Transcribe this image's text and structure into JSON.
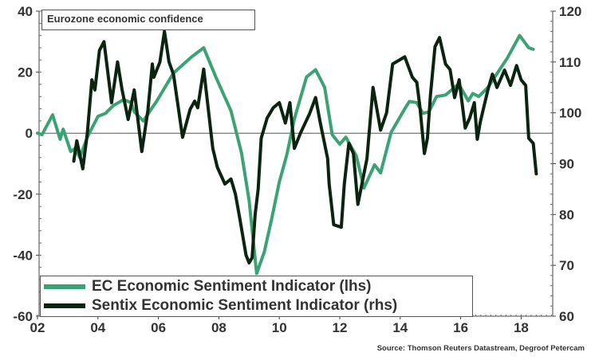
{
  "chart_data": {
    "type": "line",
    "title": "Eurozone economic confidence",
    "source": "Source: Thomson Reuters Datastream, Degroof Petercam",
    "x_tick_labels": [
      "02",
      "04",
      "06",
      "08",
      "10",
      "12",
      "14",
      "16",
      "18"
    ],
    "x_ticks": [
      2002,
      2004,
      2006,
      2008,
      2010,
      2012,
      2014,
      2016,
      2018
    ],
    "xlim": [
      2002,
      2019
    ],
    "y_left": {
      "lim": [
        -60,
        40
      ],
      "ticks": [
        -60,
        -40,
        -20,
        0,
        20,
        40
      ],
      "tick_labels": [
        "-60",
        "-40",
        "-20",
        "0",
        "20",
        "40"
      ]
    },
    "y_right": {
      "lim": [
        60,
        120
      ],
      "ticks": [
        60,
        70,
        80,
        90,
        100,
        110,
        120
      ],
      "tick_labels": [
        "60",
        "70",
        "80",
        "90",
        "100",
        "110",
        "120"
      ]
    },
    "zero_line": true,
    "legend_position": "bottom-left",
    "series": [
      {
        "name": "EC Economic Sentiment Indicator (lhs)",
        "axis": "left",
        "color": "#3aa374",
        "points": [
          [
            2002.0,
            0
          ],
          [
            2002.15,
            -0.5
          ],
          [
            2002.5,
            6
          ],
          [
            2002.75,
            -2
          ],
          [
            2002.85,
            1.3
          ],
          [
            2003.1,
            -6
          ],
          [
            2003.25,
            -5
          ],
          [
            2003.4,
            -8
          ],
          [
            2003.65,
            -1.3
          ],
          [
            2004.0,
            5.5
          ],
          [
            2004.25,
            6.5
          ],
          [
            2004.5,
            9
          ],
          [
            2004.85,
            11
          ],
          [
            2005.1,
            10
          ],
          [
            2005.2,
            7
          ],
          [
            2005.5,
            4
          ],
          [
            2005.95,
            10.6
          ],
          [
            2006.5,
            19.7
          ],
          [
            2007.1,
            25
          ],
          [
            2007.5,
            28
          ],
          [
            2007.9,
            18.4
          ],
          [
            2008.4,
            7.3
          ],
          [
            2008.75,
            -6.5
          ],
          [
            2009.0,
            -22
          ],
          [
            2009.25,
            -46
          ],
          [
            2009.5,
            -39
          ],
          [
            2009.75,
            -28
          ],
          [
            2010.0,
            -16
          ],
          [
            2010.25,
            -7
          ],
          [
            2010.5,
            4.7
          ],
          [
            2010.9,
            18.4
          ],
          [
            2011.2,
            20.8
          ],
          [
            2011.5,
            15
          ],
          [
            2011.75,
            -0.5
          ],
          [
            2012.0,
            -3.6
          ],
          [
            2012.2,
            -1.3
          ],
          [
            2012.55,
            -7.5
          ],
          [
            2012.8,
            -18
          ],
          [
            2013.15,
            -10.4
          ],
          [
            2013.35,
            -13
          ],
          [
            2013.7,
            0.3
          ],
          [
            2014.15,
            8
          ],
          [
            2014.3,
            10.4
          ],
          [
            2014.55,
            10
          ],
          [
            2014.75,
            6.5
          ],
          [
            2014.95,
            7
          ],
          [
            2015.2,
            12
          ],
          [
            2015.5,
            12.5
          ],
          [
            2015.9,
            15.8
          ],
          [
            2016.0,
            15
          ],
          [
            2016.25,
            10.6
          ],
          [
            2016.4,
            13
          ],
          [
            2016.6,
            12
          ],
          [
            2016.9,
            15
          ],
          [
            2017.2,
            19.5
          ],
          [
            2017.55,
            24.7
          ],
          [
            2017.95,
            32
          ],
          [
            2018.1,
            30
          ],
          [
            2018.25,
            28
          ],
          [
            2018.4,
            27.5
          ]
        ]
      },
      {
        "name": "Sentix Economic Sentiment Indicator (rhs)",
        "axis": "right",
        "color": "#0b2410",
        "points": [
          [
            2003.2,
            90.5
          ],
          [
            2003.3,
            94.5
          ],
          [
            2003.5,
            89
          ],
          [
            2003.65,
            96
          ],
          [
            2003.8,
            106.5
          ],
          [
            2003.9,
            104.5
          ],
          [
            2004.05,
            112.3
          ],
          [
            2004.2,
            114
          ],
          [
            2004.45,
            102
          ],
          [
            2004.65,
            110
          ],
          [
            2004.8,
            104.5
          ],
          [
            2005.0,
            98.7
          ],
          [
            2005.2,
            104.5
          ],
          [
            2005.45,
            92.4
          ],
          [
            2005.65,
            100.3
          ],
          [
            2005.8,
            109.6
          ],
          [
            2005.85,
            107
          ],
          [
            2006.05,
            110
          ],
          [
            2006.2,
            116
          ],
          [
            2006.35,
            110
          ],
          [
            2006.5,
            107.6
          ],
          [
            2006.8,
            95.2
          ],
          [
            2007.05,
            100.7
          ],
          [
            2007.2,
            102.3
          ],
          [
            2007.3,
            101
          ],
          [
            2007.5,
            108.6
          ],
          [
            2007.8,
            93
          ],
          [
            2007.95,
            89.3
          ],
          [
            2008.2,
            86
          ],
          [
            2008.4,
            87
          ],
          [
            2008.55,
            84
          ],
          [
            2008.7,
            79
          ],
          [
            2008.9,
            72
          ],
          [
            2009.0,
            70.5
          ],
          [
            2009.1,
            71.5
          ],
          [
            2009.2,
            80
          ],
          [
            2009.3,
            85
          ],
          [
            2009.4,
            95
          ],
          [
            2009.6,
            99
          ],
          [
            2009.8,
            101
          ],
          [
            2010.0,
            102
          ],
          [
            2010.2,
            98
          ],
          [
            2010.35,
            102
          ],
          [
            2010.5,
            93
          ],
          [
            2010.7,
            96
          ],
          [
            2011.0,
            99.8
          ],
          [
            2011.2,
            103
          ],
          [
            2011.35,
            98.2
          ],
          [
            2011.6,
            91
          ],
          [
            2011.65,
            86
          ],
          [
            2011.8,
            78
          ],
          [
            2012.05,
            77.5
          ],
          [
            2012.15,
            86
          ],
          [
            2012.3,
            94
          ],
          [
            2012.45,
            92
          ],
          [
            2012.6,
            82
          ],
          [
            2012.9,
            91
          ],
          [
            2013.1,
            105
          ],
          [
            2013.35,
            96.6
          ],
          [
            2013.55,
            100
          ],
          [
            2013.75,
            109.6
          ],
          [
            2014.15,
            111
          ],
          [
            2014.4,
            107
          ],
          [
            2014.55,
            106
          ],
          [
            2014.65,
            101.3
          ],
          [
            2014.8,
            92
          ],
          [
            2014.9,
            95
          ],
          [
            2015.0,
            103.5
          ],
          [
            2015.15,
            113
          ],
          [
            2015.3,
            114.8
          ],
          [
            2015.5,
            109.6
          ],
          [
            2015.65,
            108.5
          ],
          [
            2015.8,
            103
          ],
          [
            2015.95,
            106.5
          ],
          [
            2016.15,
            97
          ],
          [
            2016.3,
            99
          ],
          [
            2016.45,
            102
          ],
          [
            2016.55,
            94.8
          ],
          [
            2016.65,
            98.2
          ],
          [
            2016.9,
            104.5
          ],
          [
            2017.05,
            107.6
          ],
          [
            2017.2,
            105
          ],
          [
            2017.45,
            108.4
          ],
          [
            2017.65,
            105.4
          ],
          [
            2017.85,
            109.3
          ],
          [
            2018.0,
            106.5
          ],
          [
            2018.15,
            105.4
          ],
          [
            2018.25,
            95
          ],
          [
            2018.4,
            94
          ],
          [
            2018.5,
            88
          ]
        ]
      }
    ]
  }
}
